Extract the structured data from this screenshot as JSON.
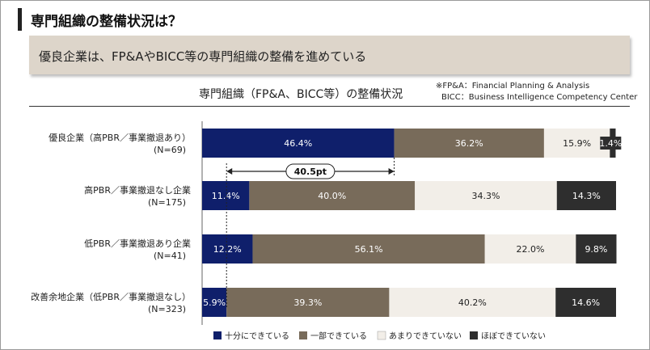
{
  "page": {
    "title": "専門組織の整備状況は？",
    "subtitle": "優良企業は、FP&AやBICC等の専門組織の整備を進めている",
    "chart_title": "専門組織（FP&A、BICC等）の整備状況",
    "footnote_fpa": "※FP&A：Financial Planning & Analysis",
    "footnote_bicc": "BICC：Business Intelligence Competency Center"
  },
  "colors": {
    "navy": "#0f1f6b",
    "brown": "#786b5a",
    "light": "#f2eee8",
    "dark": "#2e2e2e"
  },
  "chart_data": {
    "type": "bar",
    "orientation": "horizontal-stacked-100",
    "categories": [
      [
        "優良企業（高PBR／事業撤退あり）",
        "(N=69)"
      ],
      [
        "高PBR／事業撤退なし企業",
        "(N=175)"
      ],
      [
        "低PBR／事業撤退あり企業",
        "(N=41)"
      ],
      [
        "改善余地企業（低PBR／事業撤退なし）",
        "(N=323)"
      ]
    ],
    "series": [
      {
        "name": "十分にできている",
        "values": [
          46.4,
          11.4,
          12.2,
          5.9
        ],
        "labels": [
          "46.4%",
          "11.4%",
          "12.2%",
          "5.9%"
        ],
        "color": "#0f1f6b",
        "text_color": "#ffffff"
      },
      {
        "name": "一部できている",
        "values": [
          36.2,
          40.0,
          56.1,
          39.3
        ],
        "labels": [
          "36.2%",
          "40.0%",
          "56.1%",
          "39.3%"
        ],
        "color": "#786b5a",
        "text_color": "#ffffff"
      },
      {
        "name": "あまりできていない",
        "values": [
          15.9,
          34.3,
          22.0,
          40.2
        ],
        "labels": [
          "15.9%",
          "34.3%",
          "22.0%",
          "40.2%"
        ],
        "color": "#f2eee8",
        "text_color": "#222222"
      },
      {
        "name": "ほぼできていない",
        "values": [
          1.4,
          14.3,
          9.8,
          14.6
        ],
        "labels": [
          "1.4%",
          "14.3%",
          "9.8%",
          "14.6%"
        ],
        "color": "#2e2e2e",
        "text_color": "#ffffff"
      }
    ],
    "annotation": {
      "label": "40.5pt",
      "from_category": 0,
      "to_category": 3,
      "series": 0
    },
    "xlim": [
      0,
      100
    ],
    "legend": "bottom"
  }
}
